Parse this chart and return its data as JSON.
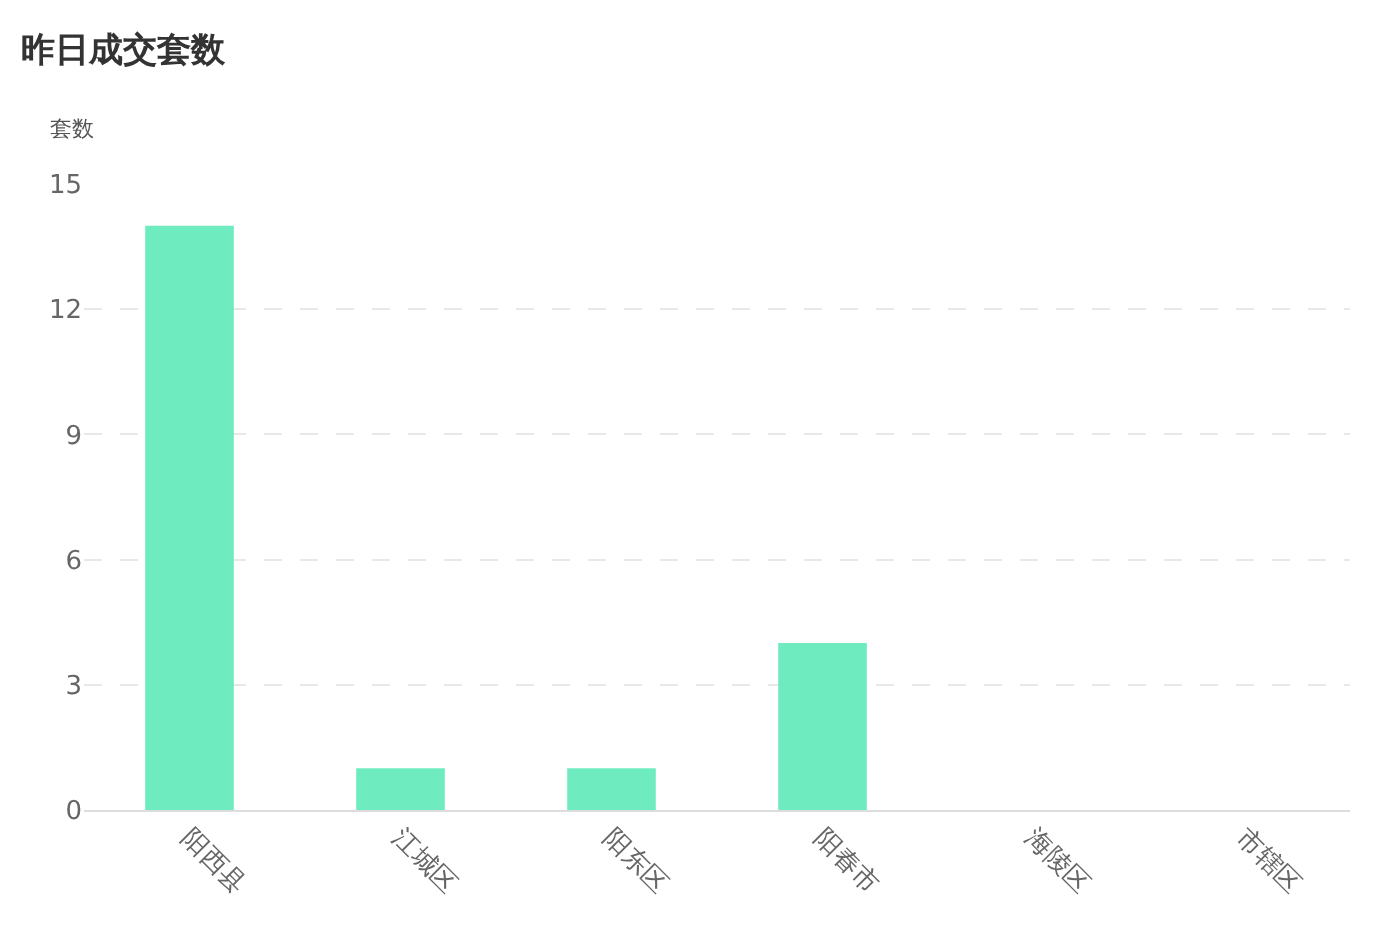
{
  "chart_data": {
    "type": "bar",
    "title": "昨日成交套数",
    "ylabel": "套数",
    "categories": [
      "阳西县",
      "江城区",
      "阳东区",
      "阳春市",
      "海陵区",
      "市辖区"
    ],
    "values": [
      14,
      1,
      1,
      4,
      0,
      0
    ],
    "color": "#6eecc0",
    "ylim": [
      0,
      15
    ],
    "yticks": [
      0,
      3,
      6,
      9,
      12,
      15
    ],
    "grid": "y"
  }
}
